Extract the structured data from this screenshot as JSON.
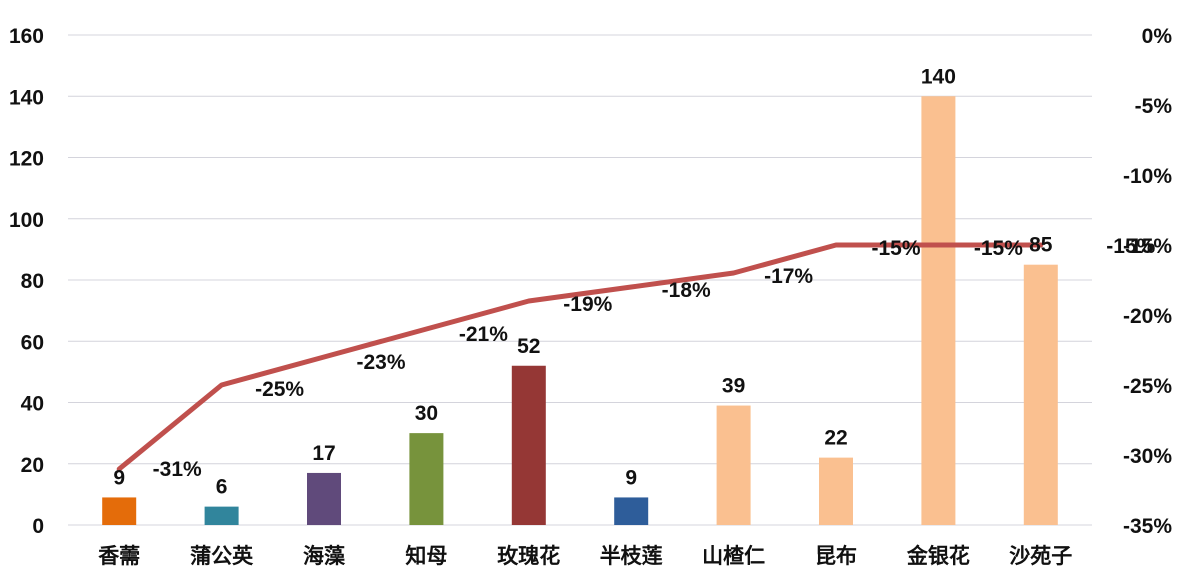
{
  "chart_data": {
    "type": "bar",
    "categories": [
      "香薷",
      "蒲公英",
      "海藻",
      "知母",
      "玫瑰花",
      "半枝莲",
      "山楂仁",
      "昆布",
      "金银花",
      "沙苑子"
    ],
    "series": [
      {
        "type": "bar",
        "axis": "left",
        "values": [
          9,
          6,
          17,
          30,
          52,
          9,
          39,
          22,
          140,
          85
        ],
        "colors": [
          "#e46c0a",
          "#31859c",
          "#604a7b",
          "#77933c",
          "#953735",
          "#2e5d9a",
          "#fac090",
          "#fac090",
          "#fac090",
          "#fac090"
        ]
      },
      {
        "type": "line",
        "axis": "right",
        "values": [
          -31,
          -25,
          -23,
          -21,
          -19,
          -18,
          -17,
          -15,
          -15,
          -15
        ],
        "labels": [
          "-31%",
          "-25%",
          "-23%",
          "-21%",
          "-19%",
          "-18%",
          "-17%",
          "-15%",
          "-15%",
          "-15%"
        ],
        "color": "#c0504d"
      }
    ],
    "y_left": {
      "range": [
        0,
        160
      ],
      "ticks": [
        "0",
        "20",
        "40",
        "60",
        "80",
        "100",
        "120",
        "140",
        "160"
      ]
    },
    "y_right": {
      "range": [
        -35,
        0
      ],
      "ticks": [
        "-35%",
        "-30%",
        "-25%",
        "-20%",
        "-15%",
        "-10%",
        "-5%",
        "0%"
      ]
    },
    "grid": true,
    "legend": "none"
  }
}
